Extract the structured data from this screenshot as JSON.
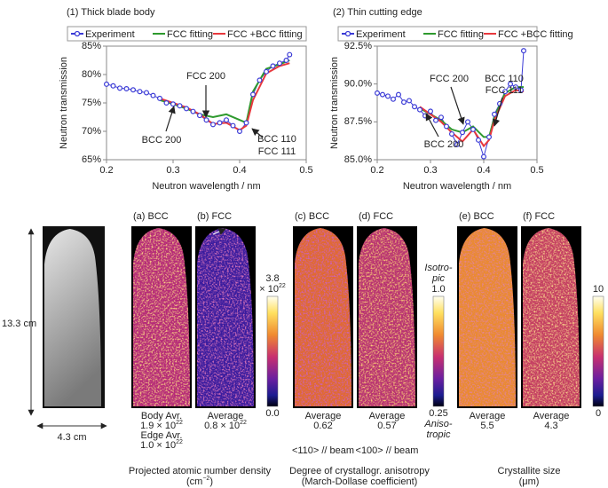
{
  "chart_data": [
    {
      "type": "line",
      "title": "(1) Thick blade body",
      "xlabel": "Neutron wavelength / nm",
      "ylabel": "Neutron transmission",
      "xlim": [
        0.2,
        0.5
      ],
      "xticks": [
        0.2,
        0.3,
        0.4,
        0.5
      ],
      "ylim": [
        65,
        85
      ],
      "yticks": [
        {
          "value": 65,
          "label": "65%"
        },
        {
          "value": 70,
          "label": "70%"
        },
        {
          "value": 75,
          "label": "75%"
        },
        {
          "value": 80,
          "label": "80%"
        },
        {
          "value": 85,
          "label": "85%"
        }
      ],
      "annotations": [
        "FCC 200",
        "BCC 200",
        "BCC 110",
        "FCC 111"
      ],
      "series": [
        {
          "name": "Experiment",
          "color": "#3b3bd6",
          "marker": "circle",
          "x": [
            0.2,
            0.21,
            0.22,
            0.23,
            0.24,
            0.25,
            0.26,
            0.27,
            0.28,
            0.29,
            0.3,
            0.31,
            0.32,
            0.33,
            0.34,
            0.35,
            0.36,
            0.37,
            0.38,
            0.39,
            0.4,
            0.41,
            0.42,
            0.43,
            0.44,
            0.45,
            0.46,
            0.47,
            0.475
          ],
          "values": [
            78.3,
            78.0,
            77.6,
            77.5,
            77.3,
            77.0,
            76.8,
            76.3,
            75.8,
            75.0,
            74.8,
            74.5,
            74.0,
            73.5,
            72.8,
            72.0,
            71.2,
            71.5,
            72.0,
            71.0,
            70.0,
            71.5,
            76.5,
            79.0,
            80.5,
            81.5,
            82.0,
            82.5,
            83.5
          ]
        },
        {
          "name": "FCC fitting",
          "color": "#2e9a2e",
          "x": [
            0.28,
            0.3,
            0.32,
            0.34,
            0.36,
            0.38,
            0.4,
            0.41,
            0.42,
            0.44,
            0.46,
            0.475
          ],
          "values": [
            75.5,
            74.8,
            74.0,
            73.0,
            72.5,
            73.0,
            72.0,
            71.5,
            77.0,
            81.0,
            81.8,
            82.5
          ]
        },
        {
          "name": "FCC +BCC fitting",
          "color": "#e8383d",
          "x": [
            0.28,
            0.3,
            0.32,
            0.34,
            0.36,
            0.38,
            0.4,
            0.41,
            0.42,
            0.44,
            0.46,
            0.475
          ],
          "values": [
            75.8,
            75.0,
            74.2,
            73.0,
            71.3,
            71.5,
            70.2,
            71.0,
            75.5,
            80.2,
            81.5,
            82.0
          ]
        }
      ]
    },
    {
      "type": "line",
      "title": "(2) Thin cutting edge",
      "xlabel": "Neutron wavelength / nm",
      "ylabel": "Neutron transmission",
      "xlim": [
        0.2,
        0.5
      ],
      "xticks": [
        0.2,
        0.3,
        0.4,
        0.5
      ],
      "ylim": [
        85,
        92.5
      ],
      "yticks": [
        {
          "value": 85,
          "label": "85.0%"
        },
        {
          "value": 87.5,
          "label": "87.5%"
        },
        {
          "value": 90,
          "label": "90.0%"
        },
        {
          "value": 92.5,
          "label": "92.5%"
        }
      ],
      "annotations": [
        "FCC 200",
        "BCC 200",
        "BCC 110",
        "FCC 111"
      ],
      "series": [
        {
          "name": "Experiment",
          "color": "#3b3bd6",
          "marker": "circle",
          "x": [
            0.2,
            0.21,
            0.22,
            0.23,
            0.24,
            0.25,
            0.26,
            0.27,
            0.28,
            0.29,
            0.3,
            0.31,
            0.32,
            0.33,
            0.34,
            0.35,
            0.36,
            0.37,
            0.38,
            0.39,
            0.4,
            0.41,
            0.42,
            0.43,
            0.44,
            0.45,
            0.46,
            0.47,
            0.475
          ],
          "values": [
            89.4,
            89.3,
            89.2,
            89.0,
            89.3,
            88.8,
            88.9,
            88.5,
            88.3,
            87.9,
            88.2,
            87.6,
            87.8,
            87.2,
            86.7,
            86.0,
            86.8,
            87.5,
            87.0,
            86.3,
            85.2,
            86.5,
            88.0,
            88.7,
            89.5,
            90.0,
            89.8,
            89.6,
            92.2
          ]
        },
        {
          "name": "FCC fitting",
          "color": "#2e9a2e",
          "x": [
            0.28,
            0.3,
            0.32,
            0.34,
            0.36,
            0.38,
            0.4,
            0.41,
            0.42,
            0.44,
            0.46,
            0.475
          ],
          "values": [
            88.4,
            88.0,
            87.6,
            87.0,
            86.8,
            87.2,
            86.5,
            86.5,
            87.8,
            89.4,
            89.8,
            89.8
          ]
        },
        {
          "name": "FCC +BCC fitting",
          "color": "#e8383d",
          "x": [
            0.28,
            0.3,
            0.32,
            0.34,
            0.36,
            0.38,
            0.4,
            0.41,
            0.42,
            0.44,
            0.46,
            0.475
          ],
          "values": [
            88.5,
            88.0,
            87.5,
            86.8,
            86.2,
            87.0,
            85.9,
            86.3,
            87.6,
            89.2,
            89.6,
            89.5
          ]
        }
      ]
    }
  ],
  "figure": {
    "photo": {
      "height_label": "13.3 cm",
      "width_label": "4.3 cm"
    },
    "maps": [
      {
        "label": "(a) BCC",
        "caption": [
          {
            "text": "Body Avr."
          },
          {
            "text": "1.9 × 10",
            "sup": "22"
          },
          {
            "text": "Edge Avr."
          },
          {
            "text": "1.0 × 10",
            "sup": "22"
          }
        ]
      },
      {
        "label": "(b) FCC",
        "caption": [
          {
            "text": "Average"
          },
          {
            "text": "0.8 × 10",
            "sup": "22"
          }
        ]
      },
      {
        "label": "(c) BCC",
        "caption": [
          {
            "text": "Average"
          },
          {
            "text": "0.62"
          }
        ],
        "note": "<110> // beam"
      },
      {
        "label": "(d) FCC",
        "caption": [
          {
            "text": "Average"
          },
          {
            "text": "0.57"
          }
        ],
        "note": "<100> // beam"
      },
      {
        "label": "(e) BCC",
        "caption": [
          {
            "text": "Average"
          },
          {
            "text": "5.5"
          }
        ]
      },
      {
        "label": "(f) FCC",
        "caption": [
          {
            "text": "Average"
          },
          {
            "text": "4.3"
          }
        ]
      }
    ],
    "colorbars": [
      {
        "top": [
          {
            "text": "3.8"
          },
          {
            "text": "× 10",
            "sup": "22"
          }
        ],
        "bottom": [
          {
            "text": "0.0"
          }
        ]
      },
      {
        "top": [
          {
            "text": "Isotro-"
          },
          {
            "text": "pic"
          },
          {
            "text": "1.0"
          }
        ],
        "bottom": [
          {
            "text": "0.25"
          },
          {
            "text": "Aniso-"
          },
          {
            "text": "tropic"
          }
        ]
      },
      {
        "top": [
          {
            "text": "10"
          }
        ],
        "bottom": [
          {
            "text": "0"
          }
        ]
      }
    ],
    "groups": [
      {
        "lines": [
          {
            "text": "Projected atomic number density"
          },
          {
            "text": "(cm",
            "sup": "−2",
            "after": ")"
          }
        ]
      },
      {
        "lines": [
          {
            "text": "Degree of crystallogr. anisotropy"
          },
          {
            "text": "(March-Dollase coefficient)"
          }
        ]
      },
      {
        "lines": [
          {
            "text": "Crystallite size"
          },
          {
            "text": "(μm)"
          }
        ]
      }
    ]
  }
}
